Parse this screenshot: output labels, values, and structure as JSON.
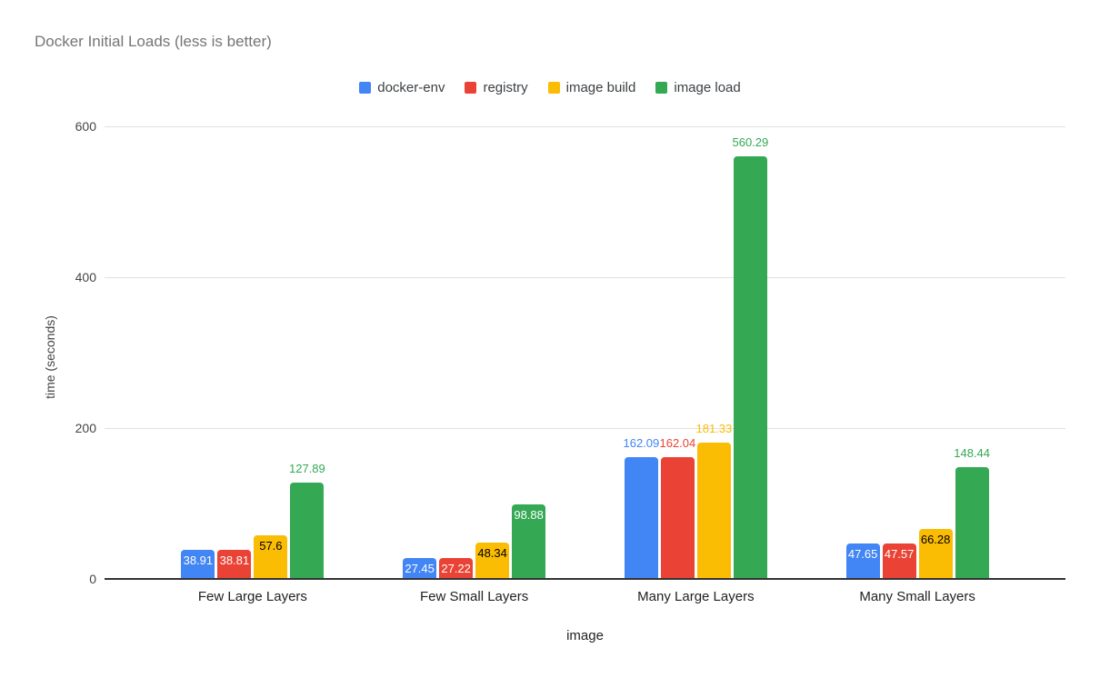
{
  "chart_data": {
    "type": "bar",
    "title": "Docker Initial Loads (less is better)",
    "xlabel": "image",
    "ylabel": "time (seconds)",
    "categories": [
      "Few Large Layers",
      "Few Small Layers",
      "Many Large Layers",
      "Many Small Layers"
    ],
    "series": [
      {
        "name": "docker-env",
        "color": "#4285F4",
        "inside_label_color": "#ffffff",
        "values": [
          38.91,
          27.45,
          162.09,
          47.65
        ]
      },
      {
        "name": "registry",
        "color": "#EA4335",
        "inside_label_color": "#ffffff",
        "values": [
          38.81,
          27.22,
          162.04,
          47.57
        ]
      },
      {
        "name": "image build",
        "color": "#FBBC04",
        "inside_label_color": "#000000",
        "values": [
          57.6,
          48.34,
          181.33,
          66.28
        ]
      },
      {
        "name": "image load",
        "color": "#34A853",
        "inside_label_color": "#ffffff",
        "values": [
          127.89,
          98.88,
          560.29,
          148.44
        ]
      }
    ],
    "ylim": [
      0,
      600
    ],
    "yticks": [
      0,
      200,
      400,
      600
    ],
    "grid": true,
    "legend_position": "top",
    "annotations": "value labels shown inside bars when they fit, otherwise above bars in series color",
    "colors": {
      "title_text": "#757575",
      "axis_text": "#444444",
      "category_text": "#222222",
      "gridline": "#e0e0e0",
      "baseline": "#333333",
      "background": "#ffffff"
    }
  }
}
